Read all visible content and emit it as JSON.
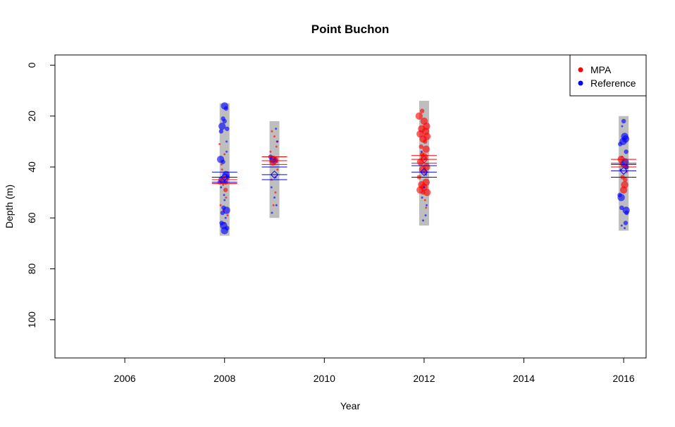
{
  "chart_data": {
    "type": "scatter",
    "title": "Point Buchon",
    "xlabel": "Year",
    "ylabel": "Depth (m)",
    "xlim": [
      2004.6,
      2016.45
    ],
    "ylim": [
      115,
      -4
    ],
    "y_reversed": true,
    "x_ticks": [
      2006,
      2008,
      2010,
      2012,
      2014,
      2016
    ],
    "y_ticks": [
      0,
      20,
      40,
      60,
      80,
      100
    ],
    "grid": false,
    "legend": {
      "placement": "top-right",
      "entries": [
        {
          "label": "MPA",
          "color": "#ff0000"
        },
        {
          "label": "Reference",
          "color": "#0000ff"
        }
      ]
    },
    "colors": {
      "MPA": "#ff0000",
      "Reference": "#0000ff",
      "depth_band": "#bebebe"
    },
    "depth_bands": [
      {
        "x": 2008,
        "min": 15,
        "max": 67
      },
      {
        "x": 2009,
        "min": 22,
        "max": 60
      },
      {
        "x": 2012,
        "min": 14,
        "max": 63
      },
      {
        "x": 2016,
        "min": 20,
        "max": 65
      }
    ],
    "summary_stats": [
      {
        "series": "MPA",
        "x": 2008,
        "mean": 45,
        "ci_low": 44,
        "ci_high": 46.5
      },
      {
        "series": "Reference",
        "x": 2008,
        "mean": 44,
        "ci_low": 42,
        "ci_high": 46
      },
      {
        "series": "MPA",
        "x": 2009,
        "mean": 37.5,
        "ci_low": 36,
        "ci_high": 39
      },
      {
        "series": "Reference",
        "x": 2009,
        "mean": 43,
        "ci_low": 40,
        "ci_high": 45
      },
      {
        "series": "MPA",
        "x": 2012,
        "mean": 37,
        "ci_low": 35.5,
        "ci_high": 38.5
      },
      {
        "series": "Reference",
        "x": 2012,
        "mean": 42,
        "ci_low": 39.5,
        "ci_high": 44
      },
      {
        "series": "MPA",
        "x": 2016,
        "mean": 38.5,
        "ci_low": 37,
        "ci_high": 40
      },
      {
        "series": "Reference",
        "x": 2016,
        "mean": 41.5,
        "ci_low": 39,
        "ci_high": 44
      }
    ],
    "series": [
      {
        "name": "MPA",
        "points": [
          [
            2007.9,
            31,
            1
          ],
          [
            2008.0,
            35,
            1
          ],
          [
            2007.95,
            41,
            1
          ],
          [
            2008.05,
            44,
            1
          ],
          [
            2007.97,
            47,
            1
          ],
          [
            2008.03,
            52,
            1
          ],
          [
            2007.92,
            55,
            1
          ],
          [
            2008.06,
            59,
            1
          ],
          [
            2008.0,
            62,
            1
          ],
          [
            2007.94,
            39,
            1
          ],
          [
            2008.02,
            49,
            2
          ],
          [
            2007.9,
            46,
            2
          ],
          [
            2008.04,
            43,
            1
          ],
          [
            2007.98,
            57,
            1
          ],
          [
            2008.95,
            26,
            1
          ],
          [
            2009.0,
            28,
            1
          ],
          [
            2009.05,
            30,
            1
          ],
          [
            2008.92,
            34,
            1
          ],
          [
            2009.03,
            37,
            2
          ],
          [
            2008.97,
            38,
            3
          ],
          [
            2009.06,
            41,
            1
          ],
          [
            2008.94,
            45,
            1
          ],
          [
            2009.02,
            50,
            1
          ],
          [
            2008.98,
            55,
            1
          ],
          [
            2009.04,
            32,
            1
          ],
          [
            2011.9,
            20,
            3
          ],
          [
            2012.0,
            22,
            3
          ],
          [
            2012.05,
            24,
            3
          ],
          [
            2011.95,
            25,
            3
          ],
          [
            2012.03,
            26,
            3
          ],
          [
            2011.92,
            27,
            3
          ],
          [
            2012.06,
            28,
            3
          ],
          [
            2011.98,
            29,
            3
          ],
          [
            2012.02,
            30,
            2
          ],
          [
            2011.94,
            32,
            2
          ],
          [
            2012.04,
            33,
            3
          ],
          [
            2011.96,
            35,
            2
          ],
          [
            2012.0,
            36,
            3
          ],
          [
            2011.93,
            38,
            3
          ],
          [
            2012.05,
            40,
            3
          ],
          [
            2011.97,
            41,
            3
          ],
          [
            2012.02,
            42,
            2
          ],
          [
            2011.9,
            44,
            2
          ],
          [
            2012.04,
            46,
            3
          ],
          [
            2011.95,
            47,
            3
          ],
          [
            2012.0,
            48,
            3
          ],
          [
            2011.92,
            49,
            3
          ],
          [
            2012.06,
            50,
            3
          ],
          [
            2011.98,
            50,
            2
          ],
          [
            2012.02,
            53,
            1
          ],
          [
            2011.96,
            18,
            2
          ],
          [
            2012.04,
            56,
            1
          ],
          [
            2015.95,
            37,
            3
          ],
          [
            2016.05,
            40,
            2
          ],
          [
            2015.98,
            44,
            2
          ],
          [
            2016.02,
            47,
            3
          ],
          [
            2016.0,
            49,
            3
          ],
          [
            2016.06,
            42,
            1
          ],
          [
            2015.97,
            36,
            1
          ],
          [
            2016.03,
            45,
            2
          ]
        ]
      },
      {
        "name": "Reference",
        "points": [
          [
            2008.0,
            16,
            3
          ],
          [
            2008.03,
            17,
            2
          ],
          [
            2007.97,
            21,
            2
          ],
          [
            2008.0,
            22,
            2
          ],
          [
            2007.95,
            24,
            3
          ],
          [
            2008.05,
            25,
            2
          ],
          [
            2007.93,
            26,
            2
          ],
          [
            2008.04,
            30,
            1
          ],
          [
            2007.92,
            37,
            3
          ],
          [
            2007.97,
            38,
            2
          ],
          [
            2008.03,
            43,
            3
          ],
          [
            2008.06,
            44,
            2
          ],
          [
            2007.95,
            45,
            3
          ],
          [
            2008.02,
            46,
            2
          ],
          [
            2007.93,
            48,
            1
          ],
          [
            2008.0,
            53,
            1
          ],
          [
            2007.98,
            56,
            2
          ],
          [
            2008.04,
            57,
            3
          ],
          [
            2007.96,
            58,
            2
          ],
          [
            2008.02,
            60,
            1
          ],
          [
            2007.98,
            63,
            3
          ],
          [
            2008.05,
            64,
            2
          ],
          [
            2008.0,
            65,
            3
          ],
          [
            2007.94,
            62,
            2
          ],
          [
            2008.04,
            34,
            1
          ],
          [
            2007.99,
            51,
            1
          ],
          [
            2008.92,
            36,
            2
          ],
          [
            2008.97,
            37,
            3
          ],
          [
            2009.03,
            25,
            1
          ],
          [
            2009.05,
            38,
            1
          ],
          [
            2008.94,
            48,
            1
          ],
          [
            2009.0,
            52,
            1
          ],
          [
            2009.04,
            55,
            1
          ],
          [
            2008.95,
            58,
            1
          ],
          [
            2009.02,
            44,
            1
          ],
          [
            2009.06,
            30,
            1
          ],
          [
            2012.02,
            37,
            1
          ],
          [
            2012.0,
            48,
            1
          ],
          [
            2011.96,
            52,
            1
          ],
          [
            2012.05,
            55,
            1
          ],
          [
            2012.03,
            59,
            1
          ],
          [
            2011.98,
            61,
            1
          ],
          [
            2012.04,
            43,
            1
          ],
          [
            2011.95,
            34,
            1
          ],
          [
            2016.0,
            22,
            2
          ],
          [
            2015.97,
            24,
            1
          ],
          [
            2016.02,
            28,
            3
          ],
          [
            2016.04,
            29,
            3
          ],
          [
            2015.99,
            30,
            3
          ],
          [
            2015.93,
            31,
            2
          ],
          [
            2016.05,
            34,
            2
          ],
          [
            2016.03,
            38,
            3
          ],
          [
            2015.98,
            39,
            2
          ],
          [
            2016.06,
            40,
            2
          ],
          [
            2015.94,
            41,
            1
          ],
          [
            2015.95,
            52,
            3
          ],
          [
            2015.92,
            51,
            2
          ],
          [
            2015.96,
            56,
            2
          ],
          [
            2016.05,
            57,
            3
          ],
          [
            2016.06,
            58,
            2
          ],
          [
            2015.96,
            63,
            1
          ],
          [
            2016.04,
            62,
            2
          ],
          [
            2016.02,
            64,
            1
          ]
        ]
      }
    ]
  }
}
